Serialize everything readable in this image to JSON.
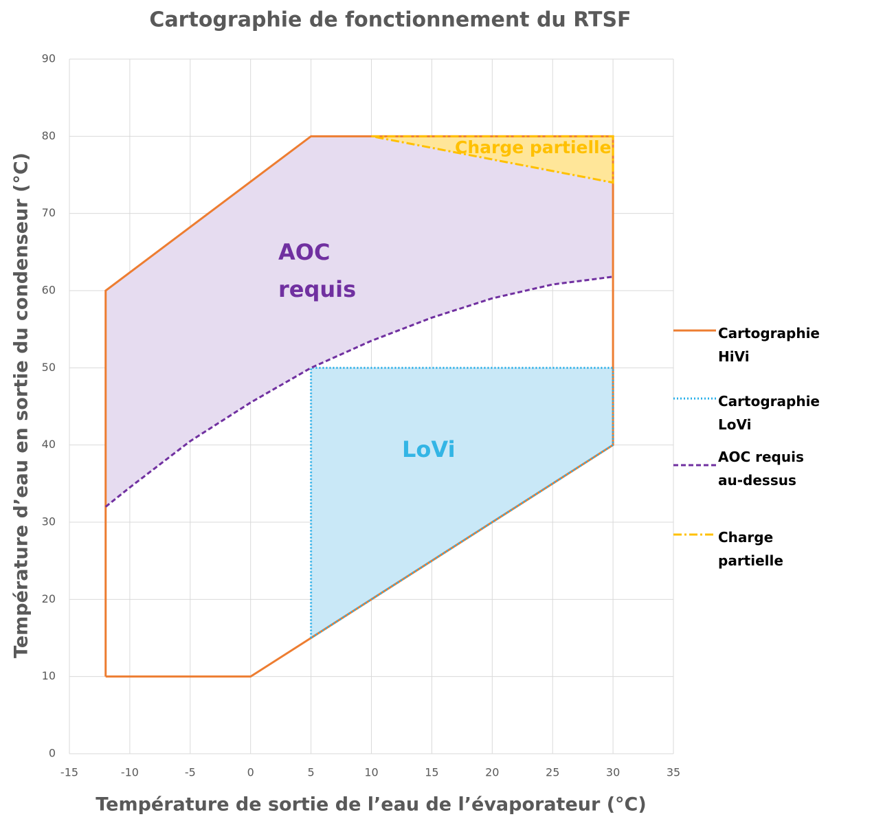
{
  "chart_data": {
    "type": "line",
    "title": "Cartographie de fonctionnement du RTSF",
    "x_label": "Température de sortie de l’eau de l’évaporateur (°C)",
    "y_label": "Température d’eau en sortie du condenseur (°C)",
    "xlim": [
      -15,
      35
    ],
    "xticks": [
      -15,
      -10,
      -5,
      0,
      5,
      10,
      15,
      20,
      25,
      30,
      35
    ],
    "ylim": [
      0,
      90
    ],
    "yticks": [
      0,
      10,
      20,
      30,
      40,
      50,
      60,
      70,
      80,
      90
    ],
    "grid": true,
    "legend": "right",
    "series": [
      {
        "name": "Cartographie HiVi",
        "color": "#ed7d31",
        "dash": "solid",
        "x": [
          -12,
          0,
          5,
          30,
          30,
          5,
          -12,
          -12
        ],
        "values": [
          10,
          10,
          15,
          40,
          80,
          80,
          60,
          10
        ]
      },
      {
        "name": "Cartographie LoVi",
        "color": "#29b0ea",
        "dash": "dotted",
        "fill": "#c9e8f7",
        "x": [
          5,
          5,
          30,
          30,
          5
        ],
        "values": [
          15,
          50,
          50,
          40,
          15
        ]
      },
      {
        "name": "AOC requis au-dessus",
        "color": "#7030a0",
        "dash": "dashed",
        "fill": "#e6dcf0",
        "x": [
          -12,
          -10,
          -5,
          0,
          5,
          10,
          15,
          20,
          25,
          30
        ],
        "values": [
          32,
          34.5,
          40.5,
          45.5,
          50,
          53.5,
          56.5,
          59,
          60.8,
          61.8
        ]
      },
      {
        "name": "Charge partielle",
        "color": "#ffc000",
        "dash": "dashdot",
        "fill": "#ffe699",
        "x": [
          10,
          30,
          30,
          10
        ],
        "values": [
          80,
          80,
          74,
          80
        ]
      }
    ],
    "annotations": [
      {
        "text": "AOC requis",
        "color": "#7030a0"
      },
      {
        "text": "LoVi",
        "color": "#33b5e5"
      },
      {
        "text": "Charge partielle",
        "color": "#ffc000"
      }
    ]
  }
}
